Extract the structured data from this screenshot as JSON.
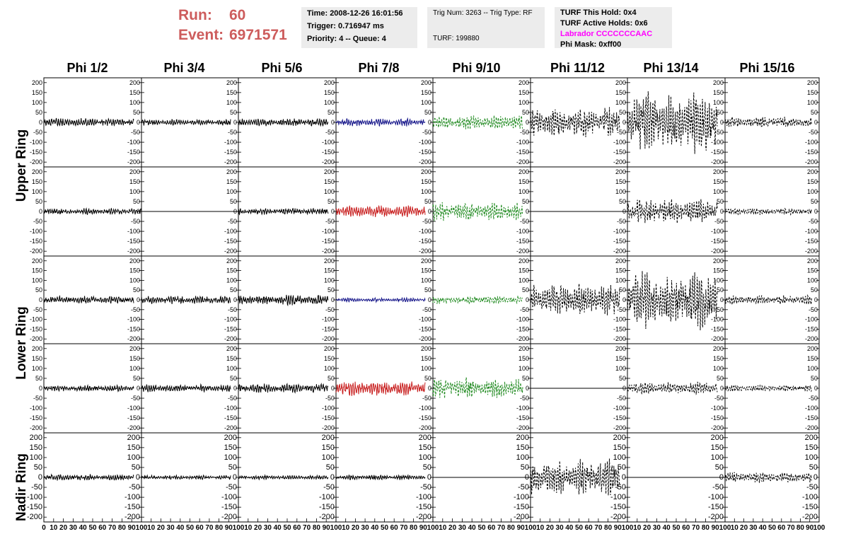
{
  "header": {
    "run_label": "Run:",
    "run_value": "60",
    "event_label": "Event:",
    "event_value": "6971571"
  },
  "info_panel_1": {
    "time": "Time: 2008-12-26 16:01:56",
    "trigger": "Trigger: 0.716947 ms",
    "priority_queue": "Priority: 4 -- Queue: 4"
  },
  "info_panel_2": {
    "trig": "Trig Num: 3263 -- Trig Type: RF",
    "turf": "TURF: 199880"
  },
  "info_panel_3": {
    "this_hold": "TURF This Hold: 0x4",
    "active_holds": "TURF Active Holds: 0x6",
    "labrador": "Labrador CCCCCCCAAC",
    "phi_mask": "Phi Mask: 0xff00"
  },
  "colors": {
    "title_red": "#cd5c5c",
    "labrador_magenta": "#ff00ff",
    "trace_black": "#000000",
    "trace_blue": "#1a1a8c",
    "trace_red": "#c81e1e",
    "trace_green": "#228b22"
  },
  "chart_data": {
    "type": "line",
    "columns": [
      "Phi 1/2",
      "Phi 3/4",
      "Phi 5/6",
      "Phi 7/8",
      "Phi 9/10",
      "Phi 11/12",
      "Phi 13/14",
      "Phi 15/16"
    ],
    "rows": [
      "Upper Ring",
      "Upper Ring",
      "Lower Ring",
      "Lower Ring",
      "Nadir Ring"
    ],
    "row_labels": [
      "Upper Ring",
      "Lower Ring",
      "Nadir Ring"
    ],
    "ylim": [
      -210,
      210
    ],
    "xlim": [
      0,
      100
    ],
    "y_ticks": [
      200,
      150,
      100,
      50,
      0,
      -50,
      -100,
      -150,
      -200
    ],
    "x_tick_labels": [
      [
        "0",
        "10",
        "20",
        "30",
        "40",
        "50",
        "60",
        "70",
        "80",
        "90",
        "100"
      ],
      [
        "10",
        "20",
        "30",
        "40",
        "50",
        "60",
        "70",
        "80",
        "90",
        "100"
      ],
      [
        "10",
        "20",
        "30",
        "40",
        "50",
        "60",
        "70",
        "80",
        "90",
        "100"
      ],
      [
        "10",
        "20",
        "30",
        "40",
        "50",
        "60",
        "70",
        "80",
        "90",
        "100"
      ],
      [
        "10",
        "20",
        "30",
        "40",
        "50",
        "60",
        "70",
        "80",
        "90",
        "100"
      ],
      [
        "10",
        "20",
        "30",
        "40",
        "50",
        "60",
        "70",
        "80",
        "90",
        "100"
      ],
      [
        "10",
        "20",
        "30",
        "40",
        "50",
        "60",
        "70",
        "80",
        "90",
        "100"
      ],
      [
        "10",
        "20",
        "30",
        "40",
        "50",
        "60",
        "70",
        "80",
        "90",
        "100"
      ]
    ],
    "traces": [
      [
        {
          "amp": 20,
          "color": "trace_black",
          "style": "solid",
          "x_end": 92
        },
        {
          "amp": 15,
          "color": "trace_black",
          "style": "solid",
          "x_end": 100
        },
        {
          "amp": 18,
          "color": "trace_black",
          "style": "solid",
          "x_end": 92
        },
        {
          "amp": 15,
          "color": "trace_black",
          "style": "solid",
          "x_end": 92
        },
        {
          "amp": 15,
          "color": "trace_black",
          "style": "solid",
          "x_end": 92
        }
      ],
      [
        {
          "amp": 15,
          "color": "trace_black",
          "style": "solid",
          "x_end": 92
        },
        {
          "amp": 0,
          "color": "trace_black",
          "style": "solid",
          "x_end": 100
        },
        {
          "amp": 20,
          "color": "trace_black",
          "style": "solid",
          "x_end": 92
        },
        {
          "amp": 18,
          "color": "trace_black",
          "style": "solid",
          "x_end": 92
        },
        {
          "amp": 10,
          "color": "trace_black",
          "style": "solid",
          "x_end": 92
        }
      ],
      [
        {
          "amp": 18,
          "color": "trace_black",
          "style": "solid",
          "x_end": 92
        },
        {
          "amp": 15,
          "color": "trace_black",
          "style": "solid",
          "x_end": 92
        },
        {
          "amp": 25,
          "color": "trace_black",
          "style": "solid",
          "x_end": 92
        },
        {
          "amp": 22,
          "color": "trace_black",
          "style": "solid",
          "x_end": 92
        },
        {
          "amp": 10,
          "color": "trace_black",
          "style": "solid",
          "x_end": 92
        }
      ],
      [
        {
          "amp": 18,
          "color": "trace_blue",
          "style": "solid",
          "x_end": 92
        },
        {
          "amp": 30,
          "color": "trace_red",
          "style": "solid",
          "x_end": 92
        },
        {
          "amp": 10,
          "color": "trace_blue",
          "style": "solid",
          "x_end": 92
        },
        {
          "amp": 35,
          "color": "trace_red",
          "style": "solid",
          "x_end": 92
        },
        {
          "amp": 12,
          "color": "trace_black",
          "style": "solid",
          "x_end": 92
        }
      ],
      [
        {
          "amp": 35,
          "color": "trace_green",
          "style": "dashed",
          "x_end": 92
        },
        {
          "amp": 45,
          "color": "trace_green",
          "style": "dashed",
          "x_end": 92
        },
        {
          "amp": 20,
          "color": "trace_green",
          "style": "dashed",
          "x_end": 92
        },
        {
          "amp": 50,
          "color": "trace_green",
          "style": "dashed",
          "x_end": 92
        },
        {
          "amp": 0,
          "color": "trace_black",
          "style": "solid",
          "x_end": 100
        }
      ],
      [
        {
          "amp": 70,
          "color": "trace_black",
          "style": "dashed",
          "x_end": 92
        },
        {
          "amp": 0,
          "color": "trace_black",
          "style": "solid",
          "x_end": 100
        },
        {
          "amp": 80,
          "color": "trace_black",
          "style": "dashed",
          "x_end": 92
        },
        {
          "amp": 0,
          "color": "trace_black",
          "style": "solid",
          "x_end": 100
        },
        {
          "amp": 85,
          "color": "trace_black",
          "style": "dashed",
          "x_end": 92
        }
      ],
      [
        {
          "amp": 150,
          "color": "trace_black",
          "style": "dashed",
          "x_end": 92
        },
        {
          "amp": 60,
          "color": "trace_black",
          "style": "dashed",
          "x_end": 92
        },
        {
          "amp": 140,
          "color": "trace_black",
          "style": "dashed",
          "x_end": 92
        },
        {
          "amp": 30,
          "color": "trace_black",
          "style": "dashed",
          "x_end": 92
        },
        {
          "amp": 0,
          "color": "trace_black",
          "style": "solid",
          "x_end": 100
        }
      ],
      [
        {
          "amp": 25,
          "color": "trace_black",
          "style": "dashed",
          "x_end": 92
        },
        {
          "amp": 15,
          "color": "trace_black",
          "style": "dashed",
          "x_end": 92
        },
        {
          "amp": 22,
          "color": "trace_black",
          "style": "dashed",
          "x_end": 92
        },
        {
          "amp": 15,
          "color": "trace_black",
          "style": "dashed",
          "x_end": 92
        },
        {
          "amp": 25,
          "color": "trace_black",
          "style": "dashed",
          "x_end": 92
        }
      ]
    ]
  }
}
